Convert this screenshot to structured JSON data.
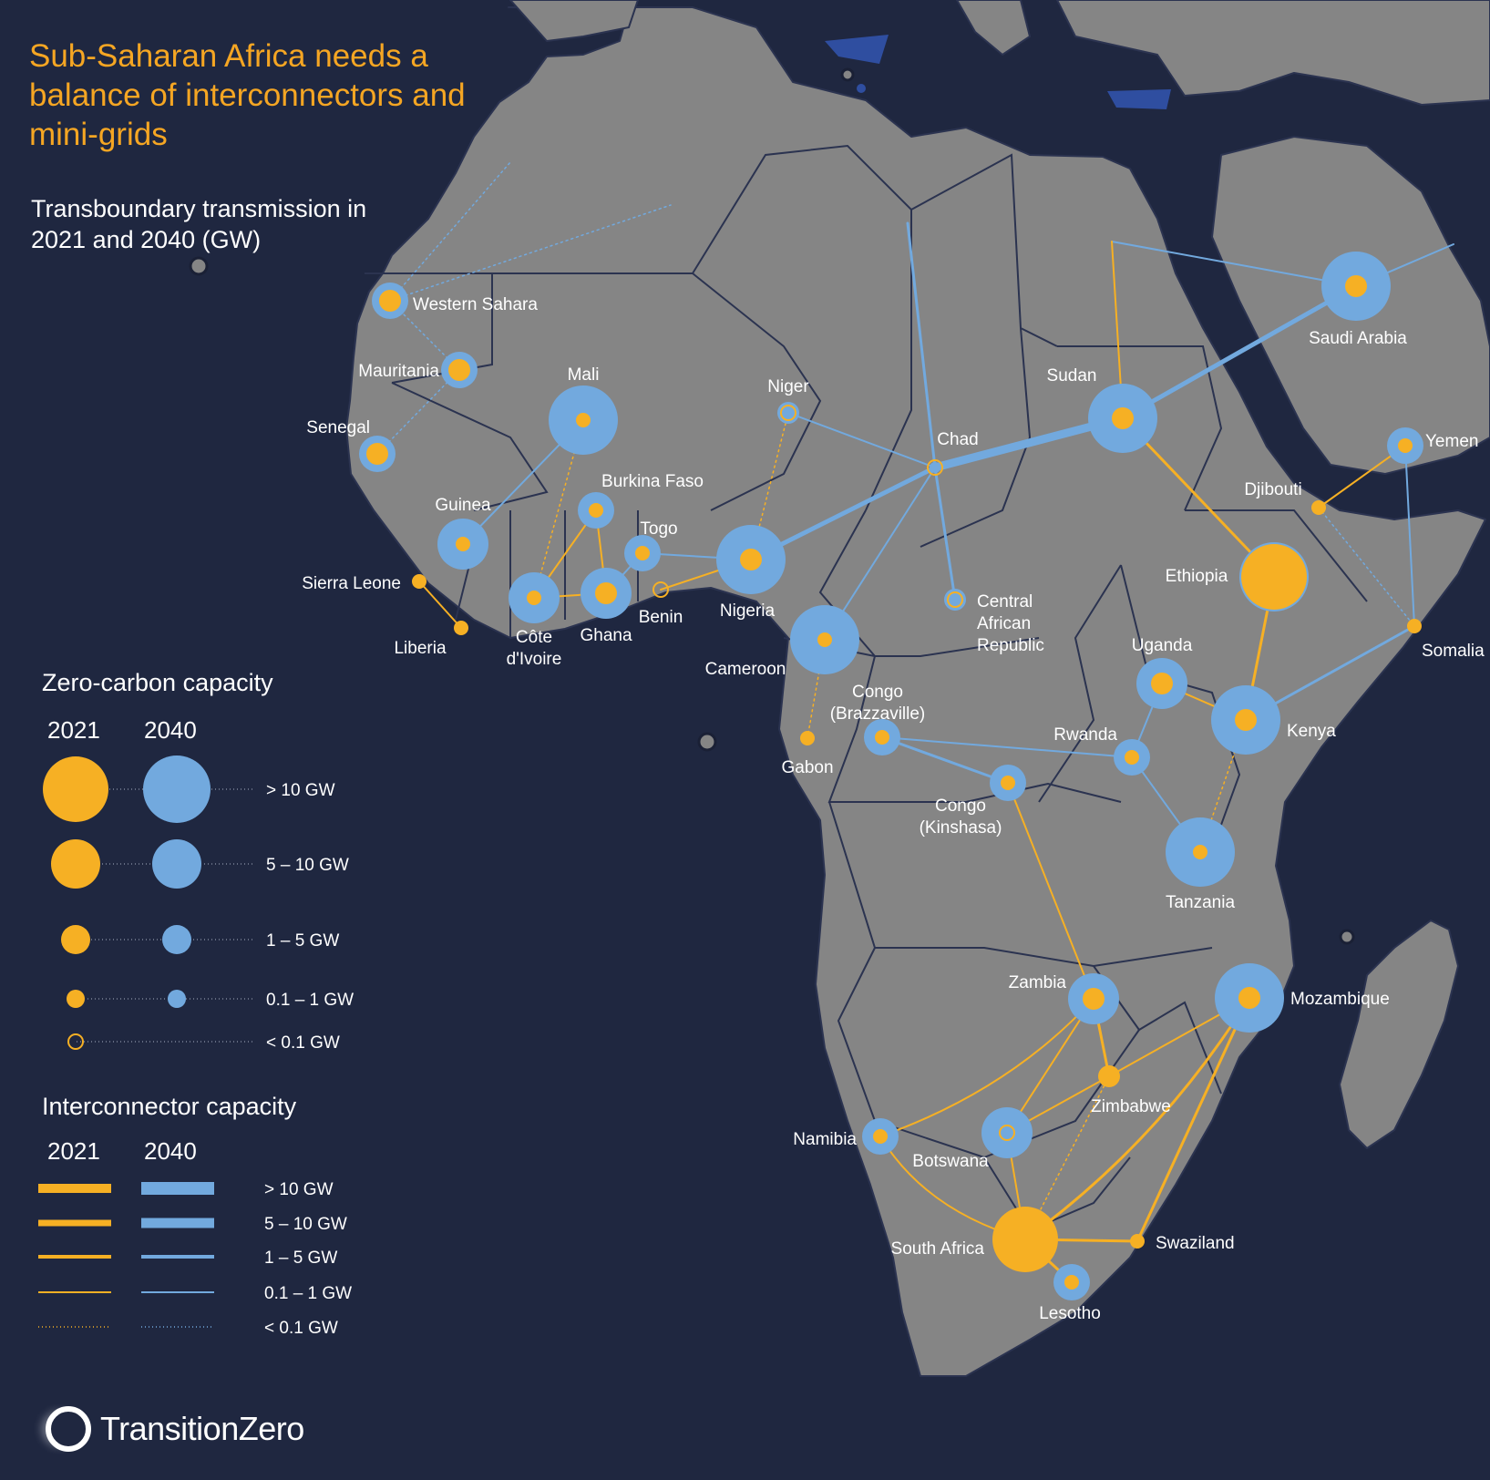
{
  "title": "Sub-Saharan Africa needs a balance of interconnectors and mini-grids",
  "subtitle": "Transboundary transmission in 2021 and 2040 (GW)",
  "colors": {
    "background": "#1f2740",
    "land": "#858585",
    "border": "#2b3350",
    "c2021": "#f6b024",
    "c2040": "#72a9de",
    "title": "#f5a623"
  },
  "legend_nodes": {
    "title": "Zero-carbon capacity",
    "year_2021": "2021",
    "year_2040": "2040",
    "rows": [
      {
        "label": "> 10 GW"
      },
      {
        "label": "5 – 10 GW"
      },
      {
        "label": "1 – 5 GW"
      },
      {
        "label": "0.1 – 1 GW"
      },
      {
        "label": "< 0.1 GW"
      }
    ]
  },
  "legend_links": {
    "title": "Interconnector capacity",
    "year_2021": "2021",
    "year_2040": "2040",
    "rows": [
      {
        "label": "> 10 GW"
      },
      {
        "label": "5 – 10 GW"
      },
      {
        "label": "1 – 5 GW"
      },
      {
        "label": "0.1 – 1 GW"
      },
      {
        "label": "< 0.1 GW"
      }
    ]
  },
  "capacity_classes": [
    "< 0.1 GW",
    "0.1 – 1 GW",
    "1 – 5 GW",
    "5 – 10 GW",
    "> 10 GW"
  ],
  "countries": [
    {
      "id": "western-sahara",
      "label": "Western Sahara",
      "cap2021": 2,
      "cap2040": 2
    },
    {
      "id": "mauritania",
      "label": "Mauritania",
      "cap2021": 2,
      "cap2040": 2
    },
    {
      "id": "senegal",
      "label": "Senegal",
      "cap2021": 2,
      "cap2040": 2
    },
    {
      "id": "mali",
      "label": "Mali",
      "cap2021": 1,
      "cap2040": 4
    },
    {
      "id": "guinea",
      "label": "Guinea",
      "cap2021": 1,
      "cap2040": 3
    },
    {
      "id": "sierra-leone",
      "label": "Sierra Leone",
      "cap2021": 1,
      "cap2040": null
    },
    {
      "id": "liberia",
      "label": "Liberia",
      "cap2021": 1,
      "cap2040": null
    },
    {
      "id": "burkina-faso",
      "label": "Burkina Faso",
      "cap2021": 1,
      "cap2040": 2
    },
    {
      "id": "cote-divoire",
      "label": "Côte\nd'Ivoire",
      "cap2021": 1,
      "cap2040": 3
    },
    {
      "id": "ghana",
      "label": "Ghana",
      "cap2021": 2,
      "cap2040": 3
    },
    {
      "id": "togo",
      "label": "Togo",
      "cap2021": 1,
      "cap2040": 2
    },
    {
      "id": "benin",
      "label": "Benin",
      "cap2021": 0,
      "cap2040": null
    },
    {
      "id": "niger",
      "label": "Niger",
      "cap2021": 0,
      "cap2040": 1
    },
    {
      "id": "nigeria",
      "label": "Nigeria",
      "cap2021": 2,
      "cap2040": 4
    },
    {
      "id": "chad",
      "label": "Chad",
      "cap2021": 0,
      "cap2040": 0
    },
    {
      "id": "cameroon",
      "label": "Cameroon",
      "cap2021": 1,
      "cap2040": 4
    },
    {
      "id": "car",
      "label": "Central\nAfrican\nRepublic",
      "cap2021": 0,
      "cap2040": 1
    },
    {
      "id": "sudan",
      "label": "Sudan",
      "cap2021": 2,
      "cap2040": 4
    },
    {
      "id": "saudi-arabia",
      "label": "Saudi Arabia",
      "cap2021": 2,
      "cap2040": 4
    },
    {
      "id": "yemen",
      "label": "Yemen",
      "cap2021": 1,
      "cap2040": 2
    },
    {
      "id": "djibouti",
      "label": "Djibouti",
      "cap2021": 1,
      "cap2040": null
    },
    {
      "id": "ethiopia",
      "label": "Ethiopia",
      "cap2021": 4,
      "cap2040": 4
    },
    {
      "id": "somalia",
      "label": "Somalia",
      "cap2021": 1,
      "cap2040": null
    },
    {
      "id": "gabon",
      "label": "Gabon",
      "cap2021": 1,
      "cap2040": null
    },
    {
      "id": "congo-brazzaville",
      "label": "Congo\n(Brazzaville)",
      "cap2021": 1,
      "cap2040": 2
    },
    {
      "id": "uganda",
      "label": "Uganda",
      "cap2021": 2,
      "cap2040": 3
    },
    {
      "id": "kenya",
      "label": "Kenya",
      "cap2021": 2,
      "cap2040": 4
    },
    {
      "id": "rwanda",
      "label": "Rwanda",
      "cap2021": 1,
      "cap2040": 2
    },
    {
      "id": "congo-kinshasa",
      "label": "Congo\n(Kinshasa)",
      "cap2021": 1,
      "cap2040": 2
    },
    {
      "id": "tanzania",
      "label": "Tanzania",
      "cap2021": 1,
      "cap2040": 4
    },
    {
      "id": "zambia",
      "label": "Zambia",
      "cap2021": 2,
      "cap2040": 3
    },
    {
      "id": "mozambique",
      "label": "Mozambique",
      "cap2021": 2,
      "cap2040": 4
    },
    {
      "id": "zimbabwe",
      "label": "Zimbabwe",
      "cap2021": 2,
      "cap2040": null
    },
    {
      "id": "namibia",
      "label": "Namibia",
      "cap2021": 1,
      "cap2040": 2
    },
    {
      "id": "botswana",
      "label": "Botswana",
      "cap2021": 0,
      "cap2040": 3
    },
    {
      "id": "south-africa",
      "label": "South Africa",
      "cap2021": 4,
      "cap2040": null
    },
    {
      "id": "swaziland",
      "label": "Swaziland",
      "cap2021": 1,
      "cap2040": null
    },
    {
      "id": "lesotho",
      "label": "Lesotho",
      "cap2021": 1,
      "cap2040": 2
    }
  ],
  "interconnectors_2021": [
    {
      "from": "sudan",
      "to": "ethiopia",
      "cap": 2
    },
    {
      "from": "sudan",
      "to": "egypt",
      "cap": 1
    },
    {
      "from": "ethiopia",
      "to": "kenya",
      "cap": 2
    },
    {
      "from": "djibouti",
      "to": "yemen",
      "cap": 1
    },
    {
      "from": "uganda",
      "to": "kenya",
      "cap": 1
    },
    {
      "from": "sierra-leone",
      "to": "liberia",
      "cap": 1
    },
    {
      "from": "cote-divoire",
      "to": "ghana",
      "cap": 1
    },
    {
      "from": "cote-divoire",
      "to": "burkina-faso",
      "cap": 1
    },
    {
      "from": "burkina-faso",
      "to": "ghana",
      "cap": 1
    },
    {
      "from": "benin",
      "to": "nigeria",
      "cap": 1
    },
    {
      "from": "zambia",
      "to": "zimbabwe",
      "cap": 2
    },
    {
      "from": "zambia",
      "to": "namibia",
      "cap": 1
    },
    {
      "from": "zambia",
      "to": "botswana",
      "cap": 1
    },
    {
      "from": "congo-kinshasa",
      "to": "zambia",
      "cap": 1
    },
    {
      "from": "zimbabwe",
      "to": "mozambique",
      "cap": 1
    },
    {
      "from": "zimbabwe",
      "to": "botswana",
      "cap": 1
    },
    {
      "from": "mozambique",
      "to": "south-africa",
      "cap": 2
    },
    {
      "from": "mozambique",
      "to": "swaziland",
      "cap": 2
    },
    {
      "from": "south-africa",
      "to": "namibia",
      "cap": 1
    },
    {
      "from": "south-africa",
      "to": "swaziland",
      "cap": 2
    },
    {
      "from": "south-africa",
      "to": "lesotho",
      "cap": 2
    },
    {
      "from": "south-africa",
      "to": "botswana",
      "cap": 1
    },
    {
      "from": "mali",
      "to": "cote-divoire",
      "cap": 0
    },
    {
      "from": "niger",
      "to": "nigeria",
      "cap": 0
    },
    {
      "from": "cameroon",
      "to": "gabon",
      "cap": 0
    },
    {
      "from": "kenya",
      "to": "tanzania",
      "cap": 0
    },
    {
      "from": "zimbabwe",
      "to": "south-africa",
      "cap": 0
    }
  ],
  "interconnectors_2040": [
    {
      "from": "sudan",
      "to": "saudi-arabia",
      "cap": 3
    },
    {
      "from": "chad",
      "to": "sudan",
      "cap": 4
    },
    {
      "from": "nigeria",
      "to": "chad",
      "cap": 3
    },
    {
      "from": "chad",
      "to": "car",
      "cap": 2
    },
    {
      "from": "chad",
      "to": "libya",
      "cap": 2
    },
    {
      "from": "chad",
      "to": "niger",
      "cap": 1
    },
    {
      "from": "chad",
      "to": "cameroon",
      "cap": 1
    },
    {
      "from": "saudi-arabia",
      "to": "egypt",
      "cap": 1
    },
    {
      "from": "saudi-arabia",
      "to": "jordan",
      "cap": 1
    },
    {
      "from": "kenya",
      "to": "somalia",
      "cap": 2
    },
    {
      "from": "yemen",
      "to": "somalia",
      "cap": 1
    },
    {
      "from": "guinea",
      "to": "mali",
      "cap": 1
    },
    {
      "from": "togo",
      "to": "nigeria",
      "cap": 1
    },
    {
      "from": "togo",
      "to": "ghana",
      "cap": 1
    },
    {
      "from": "congo-brazzaville",
      "to": "rwanda",
      "cap": 1
    },
    {
      "from": "congo-brazzaville",
      "to": "congo-kinshasa",
      "cap": 2
    },
    {
      "from": "rwanda",
      "to": "uganda",
      "cap": 1
    },
    {
      "from": "rwanda",
      "to": "tanzania",
      "cap": 1
    },
    {
      "from": "western-sahara",
      "to": "morocco",
      "cap": 0
    },
    {
      "from": "western-sahara",
      "to": "algeria",
      "cap": 0
    },
    {
      "from": "mauritania",
      "to": "western-sahara",
      "cap": 0
    },
    {
      "from": "senegal",
      "to": "mauritania",
      "cap": 0
    },
    {
      "from": "djibouti",
      "to": "somalia",
      "cap": 0
    }
  ]
}
